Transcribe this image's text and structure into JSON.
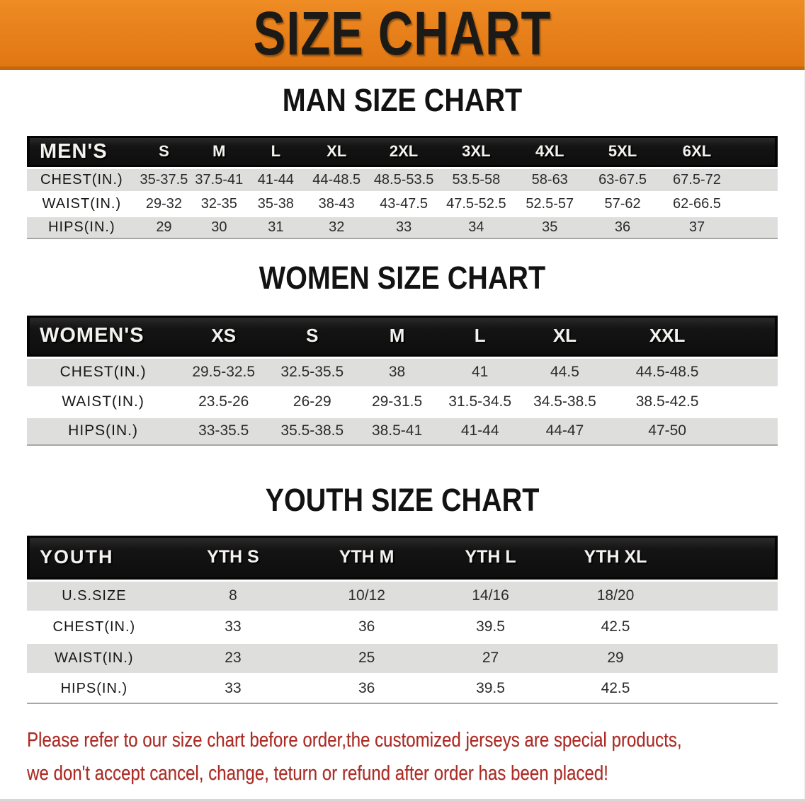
{
  "banner": {
    "title": "SIZE CHART",
    "background_color": "#E8811C",
    "text_color": "#1C1A17"
  },
  "sections": [
    {
      "id": "men",
      "title": "MAN SIZE CHART",
      "header_label": "MEN'S",
      "columns": [
        "S",
        "M",
        "L",
        "XL",
        "2XL",
        "3XL",
        "4XL",
        "5XL",
        "6XL"
      ],
      "rows": [
        {
          "label": "CHEST(IN.)",
          "shade": true,
          "values": [
            "35-37.5",
            "37.5-41",
            "41-44",
            "44-48.5",
            "48.5-53.5",
            "53.5-58",
            "58-63",
            "63-67.5",
            "67.5-72"
          ]
        },
        {
          "label": "WAIST(IN.)",
          "shade": false,
          "values": [
            "29-32",
            "32-35",
            "35-38",
            "38-43",
            "43-47.5",
            "47.5-52.5",
            "52.5-57",
            "57-62",
            "62-66.5"
          ]
        },
        {
          "label": "HIPS(IN.)",
          "shade": true,
          "values": [
            "29",
            "30",
            "31",
            "32",
            "33",
            "34",
            "35",
            "36",
            "37"
          ]
        }
      ]
    },
    {
      "id": "women",
      "title": "WOMEN SIZE CHART",
      "header_label": "WOMEN'S",
      "columns": [
        "XS",
        "S",
        "M",
        "L",
        "XL",
        "XXL"
      ],
      "rows": [
        {
          "label": "CHEST(IN.)",
          "shade": true,
          "values": [
            "29.5-32.5",
            "32.5-35.5",
            "38",
            "41",
            "44.5",
            "44.5-48.5"
          ]
        },
        {
          "label": "WAIST(IN.)",
          "shade": false,
          "values": [
            "23.5-26",
            "26-29",
            "29-31.5",
            "31.5-34.5",
            "34.5-38.5",
            "38.5-42.5"
          ]
        },
        {
          "label": "HIPS(IN.)",
          "shade": true,
          "values": [
            "33-35.5",
            "35.5-38.5",
            "38.5-41",
            "41-44",
            "44-47",
            "47-50"
          ]
        }
      ]
    },
    {
      "id": "youth",
      "title": "YOUTH SIZE CHART",
      "header_label": "YOUTH",
      "columns": [
        "YTH S",
        "YTH M",
        "YTH L",
        "YTH XL"
      ],
      "rows": [
        {
          "label": "U.S.SIZE",
          "shade": true,
          "values": [
            "8",
            "10/12",
            "14/16",
            "18/20"
          ]
        },
        {
          "label": "CHEST(IN.)",
          "shade": false,
          "values": [
            "33",
            "36",
            "39.5",
            "42.5"
          ]
        },
        {
          "label": "WAIST(IN.)",
          "shade": true,
          "values": [
            "23",
            "25",
            "27",
            "29"
          ]
        },
        {
          "label": "HIPS(IN.)",
          "shade": false,
          "values": [
            "33",
            "36",
            "39.5",
            "42.5"
          ]
        }
      ]
    }
  ],
  "disclaimer": {
    "line1": "Please refer to our size chart before order,the customized jerseys are special products,",
    "line2": "we don't accept cancel, change, teturn or refund after order has been placed!",
    "text_color": "#AD2B24"
  },
  "style_tokens": {
    "header_bar_color": "#141414",
    "stripe_row_color": "#DEDEDD",
    "banner_edge_color": "#C2690F"
  }
}
